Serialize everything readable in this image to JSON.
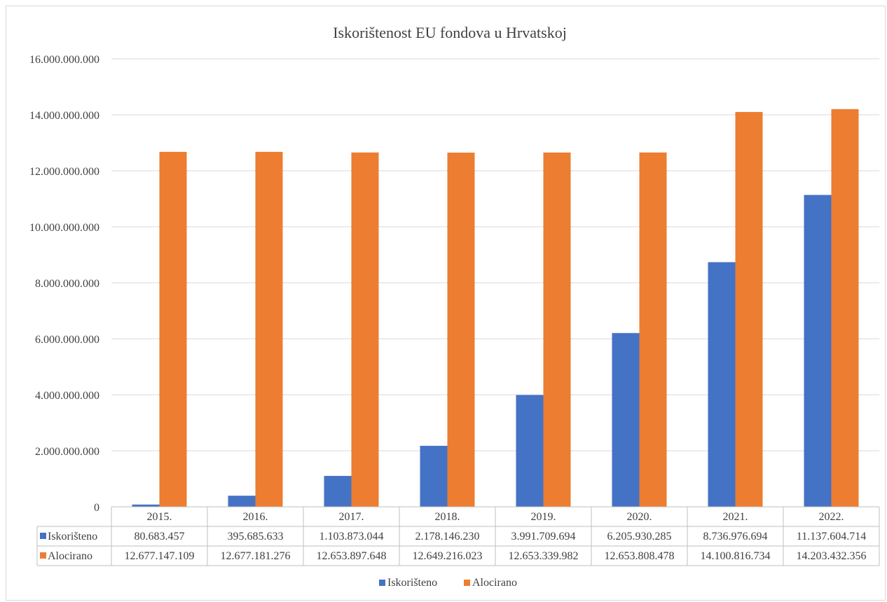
{
  "chart_data": {
    "type": "bar",
    "title": "Iskorištenost EU fondova u Hrvatskoj",
    "categories": [
      "2015.",
      "2016.",
      "2017.",
      "2018.",
      "2019.",
      "2020.",
      "2021.",
      "2022."
    ],
    "series": [
      {
        "name": "Iskorišteno",
        "color": "#4472C4",
        "values": [
          80683457,
          395685633,
          1103873044,
          2178146230,
          3991709694,
          6205930285,
          8736976694,
          11137604714
        ],
        "labels": [
          "80.683.457",
          "395.685.633",
          "1.103.873.044",
          "2.178.146.230",
          "3.991.709.694",
          "6.205.930.285",
          "8.736.976.694",
          "11.137.604.714"
        ]
      },
      {
        "name": "Alocirano",
        "color": "#ED7D31",
        "values": [
          12677147109,
          12677181276,
          12653897648,
          12649216023,
          12653339982,
          12653808478,
          14100816734,
          14203432356
        ],
        "labels": [
          "12.677.147.109",
          "12.677.181.276",
          "12.653.897.648",
          "12.649.216.023",
          "12.653.339.982",
          "12.653.808.478",
          "14.100.816.734",
          "14.203.432.356"
        ]
      }
    ],
    "ylim": [
      0,
      16000000000
    ],
    "yticks": [
      0,
      2000000000,
      4000000000,
      6000000000,
      8000000000,
      10000000000,
      12000000000,
      14000000000,
      16000000000
    ],
    "ytick_labels": [
      "0",
      "2.000.000.000",
      "4.000.000.000",
      "6.000.000.000",
      "8.000.000.000",
      "10.000.000.000",
      "12.000.000.000",
      "14.000.000.000",
      "16.000.000.000"
    ],
    "xlabel": "",
    "ylabel": "",
    "grid": true,
    "legend_position": "bottom",
    "data_table": true
  }
}
